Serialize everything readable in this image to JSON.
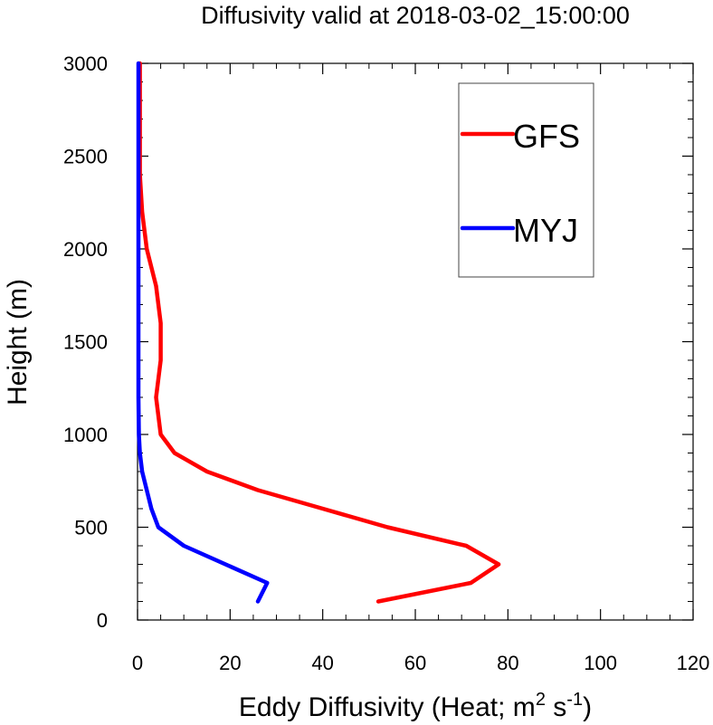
{
  "chart_data": {
    "type": "line",
    "title": "Diffusivity valid at 2018-03-02_15:00:00",
    "xlabel_main": "Eddy Diffusivity (Heat; m",
    "xlabel_sup1": "2",
    "xlabel_mid": " s",
    "xlabel_sup2": "-1",
    "xlabel_end": ")",
    "ylabel": "Height (m)",
    "xlim": [
      0,
      120
    ],
    "ylim": [
      0,
      3000
    ],
    "x_ticks": [
      0,
      20,
      40,
      60,
      80,
      100,
      120
    ],
    "y_ticks": [
      0,
      500,
      1000,
      1500,
      2000,
      2500,
      3000
    ],
    "x_minor_step": 5,
    "y_minor_step": 100,
    "grid": false,
    "legend_position": "top-right",
    "series": [
      {
        "name": "GFS",
        "color": "#ff0000",
        "x": [
          52,
          72,
          78,
          71,
          54,
          40,
          26,
          15,
          8,
          5,
          4,
          5,
          5,
          4,
          2,
          1,
          0.5,
          0.5,
          0.5
        ],
        "y": [
          100,
          200,
          300,
          400,
          500,
          600,
          700,
          800,
          900,
          1000,
          1200,
          1400,
          1600,
          1800,
          2000,
          2200,
          2400,
          2700,
          3000
        ]
      },
      {
        "name": "MYJ",
        "color": "#0000ff",
        "x": [
          26,
          28,
          10,
          4.5,
          3,
          2,
          1,
          0.5,
          0.3,
          0.2,
          0.2
        ],
        "y": [
          100,
          200,
          400,
          500,
          600,
          700,
          800,
          900,
          1000,
          1200,
          3000
        ]
      }
    ]
  }
}
